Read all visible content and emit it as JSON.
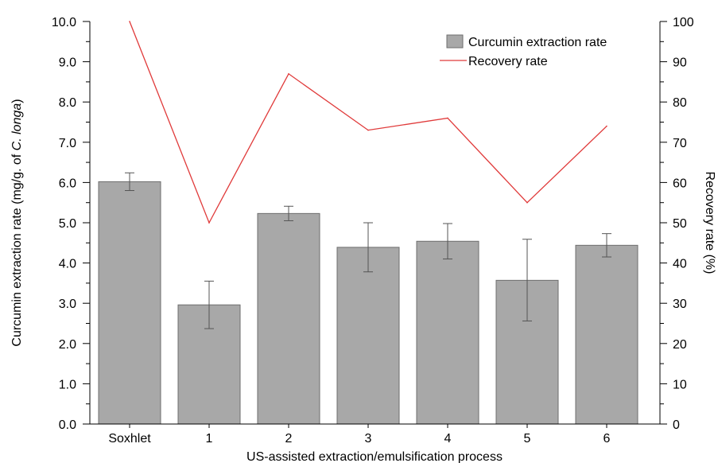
{
  "chart_data": {
    "type": "bar",
    "categories": [
      "Soxhlet",
      "1",
      "2",
      "3",
      "4",
      "5",
      "6"
    ],
    "series": [
      {
        "name": "Curcumin extraction rate",
        "kind": "bar",
        "axis": "left",
        "values": [
          6.02,
          2.96,
          5.23,
          4.39,
          4.54,
          3.57,
          4.44
        ],
        "error_low": [
          5.8,
          2.37,
          5.05,
          3.78,
          4.1,
          2.56,
          4.15
        ],
        "error_high": [
          6.24,
          3.55,
          5.41,
          5.0,
          4.98,
          4.59,
          4.73
        ],
        "color": "#a8a8a8"
      },
      {
        "name": "Recovery rate",
        "kind": "line",
        "axis": "right",
        "values": [
          100,
          50,
          87,
          73,
          76,
          55,
          74
        ],
        "color": "#e03a3a"
      }
    ],
    "xlabel": "US-assisted extraction/emulsification process",
    "ylabel_parts": [
      "Curcumin extraction rate (mg/g. of ",
      "C. longa",
      ")"
    ],
    "y2label": "Recovery rate (%)",
    "ylim": [
      0,
      10
    ],
    "y2lim": [
      0,
      100
    ],
    "yticks": [
      "0.0",
      "1.0",
      "2.0",
      "3.0",
      "4.0",
      "5.0",
      "6.0",
      "7.0",
      "8.0",
      "9.0",
      "10.0"
    ],
    "y2ticks": [
      "0",
      "10",
      "20",
      "30",
      "40",
      "50",
      "60",
      "70",
      "80",
      "90",
      "100"
    ],
    "legend_position": "top-right",
    "grid": false
  }
}
